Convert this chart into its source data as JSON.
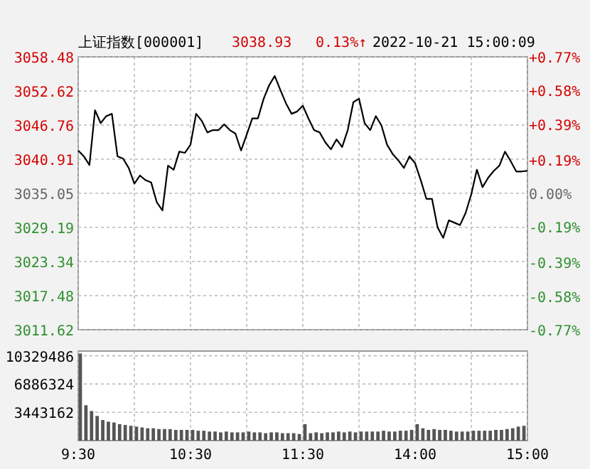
{
  "chart_data": [
    {
      "type": "line",
      "title": "上证指数[000001]",
      "annotations": [
        "3038.93",
        "0.13%↑",
        "2022-10-21 15:00:09"
      ],
      "grid": true,
      "tick_labels": "y",
      "categories": [
        null,
        null,
        null,
        null,
        null,
        null,
        null,
        null,
        null,
        null,
        null,
        null,
        null,
        null,
        null,
        null,
        null,
        null,
        null,
        null,
        null,
        null,
        null,
        null,
        null,
        null,
        null,
        null,
        null,
        null,
        null,
        null,
        null,
        null,
        null,
        null,
        null,
        null,
        null,
        null,
        null,
        null,
        null,
        null,
        null,
        null,
        null,
        null,
        null,
        null,
        null,
        null,
        null,
        null,
        null,
        null,
        null,
        null,
        null,
        null,
        null,
        null,
        null,
        null,
        null,
        null,
        null,
        null,
        null,
        null,
        null,
        null,
        null,
        null,
        null,
        null,
        null,
        null,
        null,
        null,
        null
      ],
      "ylim": [
        3011.62,
        3058.48
      ],
      "yticks": [
        3011.62,
        3017.48,
        3023.34,
        3029.19,
        3035.05,
        3040.91,
        3046.76,
        3052.62,
        3058.48
      ],
      "y2lim": [
        -0.77,
        0.77
      ],
      "y2ticks": [
        {
          "value": -0.77,
          "label": "-0.77%"
        },
        {
          "value": -0.58,
          "label": "-0.58%"
        },
        {
          "value": -0.39,
          "label": "-0.39%"
        },
        {
          "value": -0.19,
          "label": "-0.19%"
        },
        {
          "value": 0,
          "label": "0.00%"
        },
        {
          "value": 0.19,
          "label": "+0.19%"
        },
        {
          "value": 0.39,
          "label": "+0.39%"
        },
        {
          "value": 0.58,
          "label": "+0.58%"
        },
        {
          "value": 0.77,
          "label": "+0.77%"
        }
      ],
      "series": [
        {
          "color": "#000000",
          "values": [
            3042.4,
            3041.4,
            3039.9,
            3049.3,
            3047.1,
            3048.3,
            3048.7,
            3041.4,
            3041.0,
            3039.4,
            3036.7,
            3038.1,
            3037.3,
            3036.9,
            3033.5,
            3032.1,
            3039.8,
            3039.1,
            3042.2,
            3042.0,
            3043.4,
            3048.7,
            3047.5,
            3045.5,
            3045.9,
            3045.9,
            3046.9,
            3045.9,
            3045.3,
            3042.4,
            3045.1,
            3047.9,
            3047.9,
            3051.2,
            3053.6,
            3055.2,
            3052.8,
            3050.5,
            3048.7,
            3049.1,
            3050.1,
            3047.9,
            3045.9,
            3045.5,
            3043.8,
            3042.6,
            3044.3,
            3043.0,
            3045.9,
            3050.7,
            3051.3,
            3047.1,
            3045.9,
            3048.3,
            3046.7,
            3043.4,
            3041.8,
            3040.7,
            3039.4,
            3041.4,
            3040.2,
            3037.3,
            3034.1,
            3034.1,
            3029.2,
            3027.4,
            3030.4,
            3030.0,
            3029.6,
            3031.7,
            3034.9,
            3039.1,
            3036.1,
            3037.7,
            3038.9,
            3039.8,
            3042.2,
            3040.6,
            3038.8,
            3038.8,
            3038.9
          ]
        }
      ]
    },
    {
      "type": "bar",
      "grid": true,
      "color": "#555555",
      "categories": [
        "9:30",
        null,
        null,
        null,
        null,
        null,
        null,
        null,
        null,
        null,
        null,
        null,
        null,
        null,
        null,
        null,
        null,
        null,
        null,
        null,
        "10:30",
        null,
        null,
        null,
        null,
        null,
        null,
        null,
        null,
        null,
        null,
        null,
        null,
        null,
        null,
        null,
        null,
        null,
        null,
        null,
        "11:30",
        null,
        null,
        null,
        null,
        null,
        null,
        null,
        null,
        null,
        null,
        null,
        null,
        null,
        null,
        null,
        null,
        null,
        null,
        null,
        "14:00",
        null,
        null,
        null,
        null,
        null,
        null,
        null,
        null,
        null,
        null,
        null,
        null,
        null,
        null,
        null,
        null,
        null,
        null,
        null,
        "15:00"
      ],
      "ylim": [
        0,
        10900000
      ],
      "yticks": [
        3443162,
        6886324,
        10329486
      ],
      "values": [
        10600000,
        4300000,
        3600000,
        3000000,
        2500000,
        2300000,
        2200000,
        2000000,
        1900000,
        1800000,
        1700000,
        1600000,
        1500000,
        1500000,
        1400000,
        1400000,
        1400000,
        1300000,
        1300000,
        1300000,
        1300000,
        1200000,
        1200000,
        1100000,
        1100000,
        1000000,
        1100000,
        1000000,
        1000000,
        1000000,
        1100000,
        1000000,
        1000000,
        900000,
        1000000,
        1000000,
        900000,
        900000,
        900000,
        800000,
        2000000,
        900000,
        1000000,
        900000,
        1000000,
        1000000,
        1100000,
        1000000,
        1100000,
        1000000,
        1100000,
        1100000,
        1100000,
        1100000,
        1200000,
        1100000,
        1100000,
        1200000,
        1200000,
        1300000,
        2000000,
        1500000,
        1300000,
        1400000,
        1300000,
        1300000,
        1200000,
        1100000,
        1100000,
        1100000,
        1200000,
        1200000,
        1200000,
        1200000,
        1300000,
        1300000,
        1400000,
        1500000,
        1700000,
        1800000,
        null
      ]
    }
  ]
}
